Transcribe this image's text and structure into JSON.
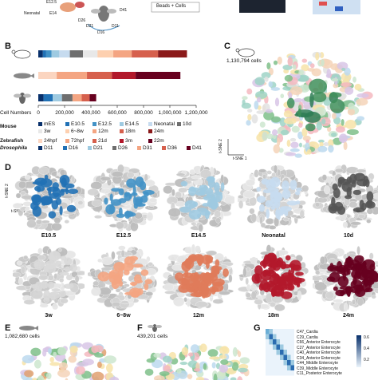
{
  "top_strip": {
    "labels": [
      "E12.5",
      "Neonatal",
      "E14",
      "D41",
      "D26",
      "D21",
      "D11",
      "D16",
      "Beads + Cells"
    ]
  },
  "panels": {
    "B": "B",
    "C": "C",
    "D": "D",
    "E": "E",
    "F": "F",
    "G": "G"
  },
  "panel_c": {
    "cell_count": "1,130,794 cells",
    "axis_x": "t-SNE 1",
    "axis_y": "t-SNE 2"
  },
  "panel_d": {
    "axis_x": "t-SNE 1",
    "axis_y": "t-SNE 2",
    "row1": [
      "E10.5",
      "E12.5",
      "E14.5",
      "Neonatal",
      "10d"
    ],
    "row2": [
      "3w",
      "6~8w",
      "12m",
      "18m",
      "24m"
    ]
  },
  "panel_e": {
    "cell_count": "1,082,680 cells"
  },
  "panel_f": {
    "cell_count": "439,201 cells"
  },
  "panel_g": {
    "rows": [
      "C47_Cardia",
      "C29_Cardia",
      "C66_Anterior Enterocyte",
      "C27_Anterior Enterocyte",
      "C40_Anterior Enterocyte",
      "C34_Anterior Enterocyte",
      "C44_Middle Enterocyte",
      "C39_Middle Enterocyte",
      "C11_Posterior Enterocyte"
    ],
    "scale": [
      "0.6",
      "0.4",
      "0.2"
    ]
  },
  "legend": {
    "groups": [
      {
        "name": "Mouse",
        "items": [
          {
            "label": "mES",
            "color": "#08306b"
          },
          {
            "label": "E10.5",
            "color": "#2171b5"
          },
          {
            "label": "E12.5",
            "color": "#4292c6"
          },
          {
            "label": "E14.5",
            "color": "#9ecae1"
          },
          {
            "label": "Neonatal",
            "color": "#c6dbef"
          },
          {
            "label": "10d",
            "color": "#6e6e6e"
          },
          {
            "label": "3w",
            "color": "#e8e8e8"
          },
          {
            "label": "6~8w",
            "color": "#fdd0b0"
          },
          {
            "label": "12m",
            "color": "#f4a582"
          },
          {
            "label": "18m",
            "color": "#d6604d"
          },
          {
            "label": "24m",
            "color": "#8b1a1a"
          }
        ]
      },
      {
        "name": "Zebrafish",
        "items": [
          {
            "label": "24hpf",
            "color": "#fbd5c0"
          },
          {
            "label": "72hpf",
            "color": "#f4a582"
          },
          {
            "label": "21d",
            "color": "#d6604d"
          },
          {
            "label": "3m",
            "color": "#b2182b"
          },
          {
            "label": "22m",
            "color": "#67001f"
          }
        ]
      },
      {
        "name": "Drosophila",
        "items": [
          {
            "label": "D11",
            "color": "#08306b"
          },
          {
            "label": "D16",
            "color": "#2171b5"
          },
          {
            "label": "D21",
            "color": "#9ecae1"
          },
          {
            "label": "D26",
            "color": "#6e6e6e"
          },
          {
            "label": "D31",
            "color": "#f4a582"
          },
          {
            "label": "D36",
            "color": "#d6604d"
          },
          {
            "label": "D41",
            "color": "#67001f"
          }
        ]
      }
    ]
  },
  "chart_data": {
    "type": "bar",
    "orientation": "horizontal",
    "stacked": true,
    "xlabel": "Cell Numbers",
    "xlim": [
      0,
      1200000
    ],
    "xticks": [
      "0",
      "200,000",
      "400,000",
      "600,000",
      "800,000",
      "1,000,000",
      "1,200,000"
    ],
    "categories": [
      "Mouse",
      "Zebrafish",
      "Drosophila"
    ],
    "stacks": [
      {
        "category": "Mouse",
        "segments": [
          {
            "name": "mES",
            "value": 35000,
            "color": "#08306b"
          },
          {
            "name": "E10.5",
            "value": 25000,
            "color": "#2171b5"
          },
          {
            "name": "E12.5",
            "value": 40000,
            "color": "#4292c6"
          },
          {
            "name": "E14.5",
            "value": 60000,
            "color": "#9ecae1"
          },
          {
            "name": "Neonatal",
            "value": 80000,
            "color": "#c6dbef"
          },
          {
            "name": "10d",
            "value": 100000,
            "color": "#6e6e6e"
          },
          {
            "name": "3w",
            "value": 110000,
            "color": "#e8e8e8"
          },
          {
            "name": "6~8w",
            "value": 120000,
            "color": "#fdd0b0"
          },
          {
            "name": "12m",
            "value": 140000,
            "color": "#f4a582"
          },
          {
            "name": "18m",
            "value": 200000,
            "color": "#d6604d"
          },
          {
            "name": "24m",
            "value": 220000,
            "color": "#8b1a1a"
          }
        ]
      },
      {
        "category": "Zebrafish",
        "segments": [
          {
            "name": "24hpf",
            "value": 140000,
            "color": "#fbd5c0"
          },
          {
            "name": "72hpf",
            "value": 230000,
            "color": "#f4a582"
          },
          {
            "name": "21d",
            "value": 190000,
            "color": "#d6604d"
          },
          {
            "name": "3m",
            "value": 180000,
            "color": "#b2182b"
          },
          {
            "name": "22m",
            "value": 340000,
            "color": "#67001f"
          }
        ]
      },
      {
        "category": "Drosophila",
        "segments": [
          {
            "name": "D11",
            "value": 40000,
            "color": "#08306b"
          },
          {
            "name": "D16",
            "value": 70000,
            "color": "#2171b5"
          },
          {
            "name": "D21",
            "value": 70000,
            "color": "#9ecae1"
          },
          {
            "name": "D26",
            "value": 80000,
            "color": "#6e6e6e"
          },
          {
            "name": "D31",
            "value": 70000,
            "color": "#f4a582"
          },
          {
            "name": "D36",
            "value": 60000,
            "color": "#d6604d"
          },
          {
            "name": "D41",
            "value": 50000,
            "color": "#67001f"
          }
        ]
      }
    ]
  },
  "tsne_colors": {
    "E10.5": "#2171b5",
    "E12.5": "#4292c6",
    "E14.5": "#9ecae1",
    "Neonatal": "#c6dbef",
    "10d": "#555555",
    "3w": "#d9d9d9",
    "6~8w": "#f4a582",
    "12m": "#e07b5a",
    "18m": "#b2182b",
    "24m": "#67001f"
  }
}
